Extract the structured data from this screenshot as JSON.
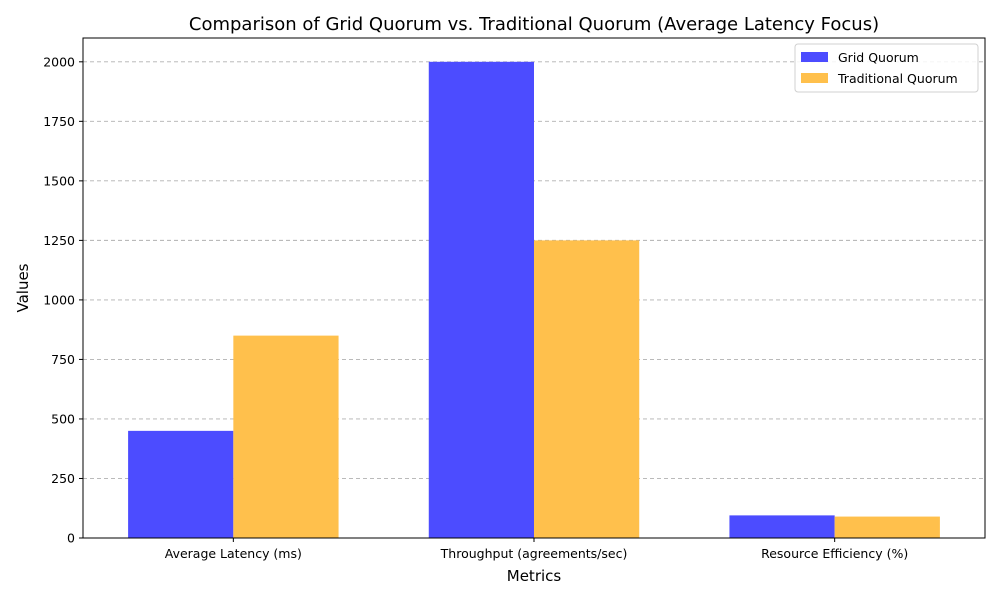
{
  "chart_data": {
    "type": "bar",
    "title": "Comparison of Grid Quorum vs. Traditional Quorum (Average Latency Focus)",
    "xlabel": "Metrics",
    "ylabel": "Values",
    "categories": [
      "Average Latency (ms)",
      "Throughput (agreements/sec)",
      "Resource Efficiency (%)"
    ],
    "series": [
      {
        "name": "Grid Quorum",
        "values": [
          450,
          2000,
          95
        ],
        "color": "#4c4cff"
      },
      {
        "name": "Traditional Quorum",
        "values": [
          850,
          1250,
          90
        ],
        "color": "#ffc04c"
      }
    ],
    "ylim": [
      0,
      2100
    ],
    "yticks": [
      0,
      250,
      500,
      750,
      1000,
      1250,
      1500,
      1750,
      2000
    ],
    "grid": "y-dashed",
    "legend_position": "top-right"
  }
}
